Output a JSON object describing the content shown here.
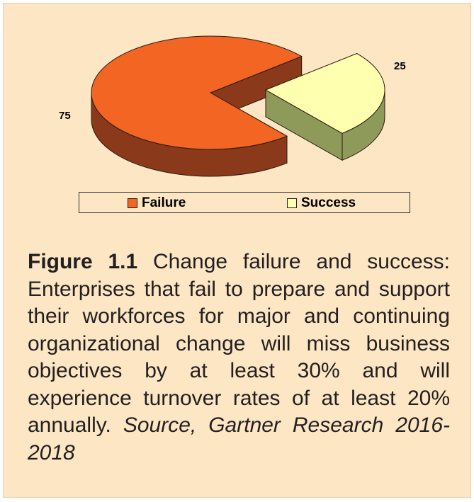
{
  "chart_data": {
    "type": "pie",
    "style": "3d-exploded",
    "categories": [
      "Failure",
      "Success"
    ],
    "values": [
      75,
      25
    ],
    "colors": [
      "#f26522",
      "#ffffb0"
    ],
    "legend_position": "bottom"
  },
  "legend": {
    "items": [
      {
        "label": "Failure",
        "color": "#f26522"
      },
      {
        "label": "Success",
        "color": "#ffffb0"
      }
    ]
  },
  "caption": {
    "figure_label": "Figure 1.1",
    "text": "Change failure and success: Enterprises that fail to prepare and support their workforces for major and continuing organizational change will miss business objectives by at least 30% and will experience turnover rates of at least 20% annually.",
    "source": "Source, Gartner Research 2016-2018"
  },
  "colors": {
    "background": "#fce6c4",
    "failure_side": "#8a3a1a",
    "success_side": "#8e9a5a"
  }
}
